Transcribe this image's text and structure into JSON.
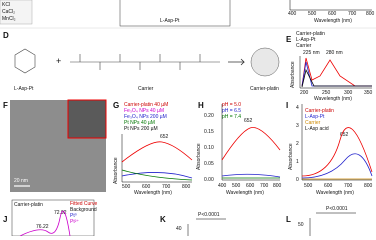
{
  "panel_top": {
    "salts": [
      "KCl",
      "CaCl₂",
      "MnCl₂"
    ],
    "product": "L-Asp-Pt",
    "x_ticks": [
      "400",
      "500",
      "600",
      "700",
      "800"
    ],
    "x_label": "Wavelength (nm)"
  },
  "panel_d": {
    "letter": "D",
    "reagent": "L-Asp-Pt",
    "plus": "+",
    "carrier": "Carrier",
    "product": "Carrier-platin"
  },
  "panel_e": {
    "letter": "E",
    "legend": [
      "Carrier-platin",
      "L-Asp-Pt",
      "Carrier"
    ],
    "annotations": [
      "225 nm",
      "280 nm"
    ],
    "y_label": "Absorbance",
    "x_ticks": [
      "200",
      "250",
      "300",
      "350"
    ],
    "x_label": "Wavelength (nm)"
  },
  "panel_f": {
    "letter": "F",
    "scale": "20 nm"
  },
  "panel_g": {
    "letter": "G",
    "legend": [
      "Carrier-platin 40 µM",
      "Fe₃O₄ NPs 40 µM",
      "Fe₃O₄ NPs 200 µM",
      "Pt NPs 40 µM",
      "Pt NPs 200 µM"
    ],
    "peak": "652",
    "y_label": "Absorbance",
    "x_ticks": [
      "500",
      "600",
      "700",
      "800"
    ],
    "x_label": "Wavelength (nm)"
  },
  "panel_h": {
    "letter": "H",
    "legend": [
      "pH = 5.0",
      "pH = 6.5",
      "pH = 7.4"
    ],
    "peak": "652",
    "y_label": "Absorbance",
    "y_ticks": [
      "0.00",
      "0.05",
      "0.10",
      "0.15",
      "0.20"
    ],
    "x_ticks": [
      "400",
      "500",
      "600",
      "700",
      "800"
    ],
    "x_label": "Wavelength (nm)"
  },
  "panel_i": {
    "letter": "I",
    "legend": [
      "Carrier-platin",
      "L-Asp-Pt",
      "Carrier",
      "L-Asp acid"
    ],
    "peak": "652",
    "y_label": "Absorbance",
    "y_ticks": [
      "0",
      "1",
      "2",
      "3",
      "4"
    ],
    "x_ticks": [
      "500",
      "600",
      "700",
      "800"
    ],
    "x_label": "Wavelength (nm)"
  },
  "panel_j": {
    "letter": "J",
    "sample": "Carrier-platin",
    "legend": [
      "Fitted Curve",
      "Background",
      "Pt⁰",
      "Pt²⁺"
    ],
    "peaks": [
      "76.22",
      "72.92"
    ]
  },
  "panel_k": {
    "letter": "K",
    "p_value": "P<0.0001",
    "y_tick": "40"
  },
  "panel_l": {
    "letter": "L",
    "p_value": "P<0.0001",
    "y_tick": "50"
  }
}
